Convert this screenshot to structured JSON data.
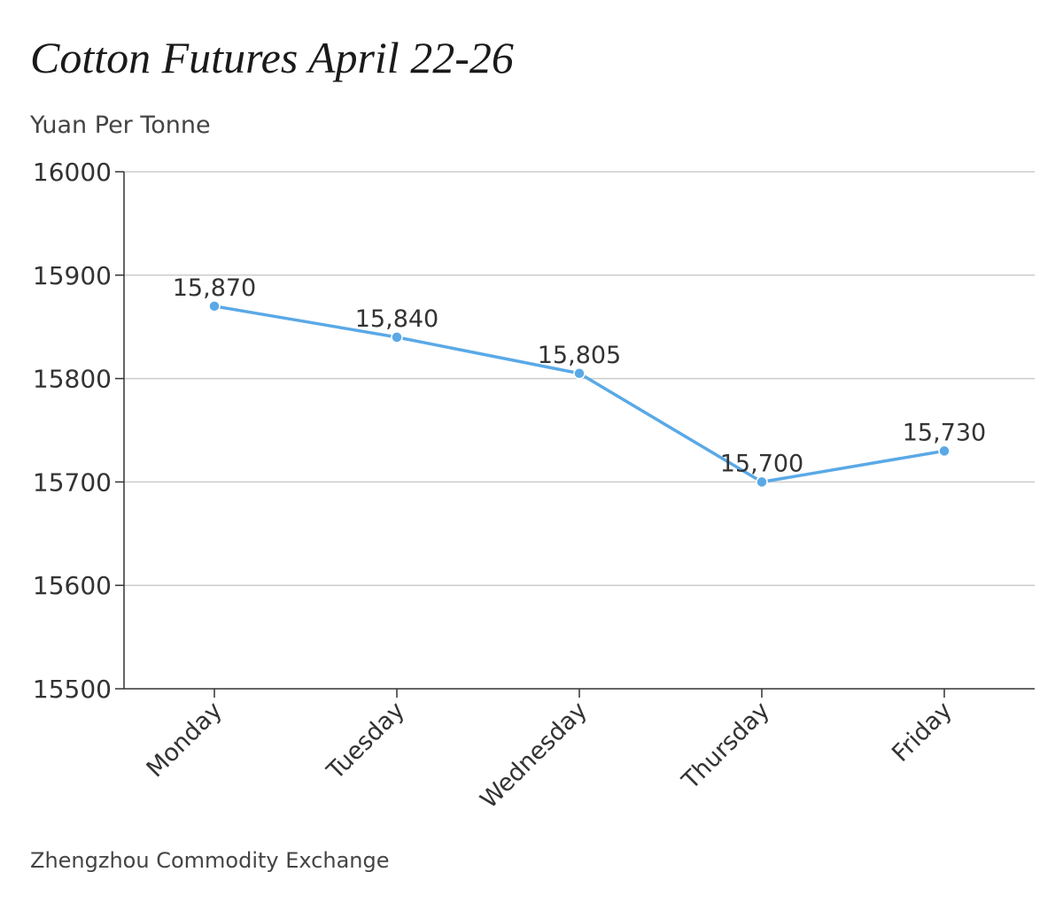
{
  "title": "Cotton Futures April 22-26",
  "unit_label": "Yuan Per Tonne",
  "source": "Zhengzhou Commodity Exchange",
  "colors": {
    "line": "#5aa9e6",
    "grid": "#cccccc",
    "axis": "#333333",
    "text": "#333333"
  },
  "chart_data": {
    "type": "line",
    "categories": [
      "Monday",
      "Tuesday",
      "Wednesday",
      "Thursday",
      "Friday"
    ],
    "series": [
      {
        "values": [
          15870,
          15840,
          15805,
          15700,
          15730
        ],
        "labels": [
          "15,870",
          "15,840",
          "15,805",
          "15,700",
          "15,730"
        ]
      }
    ],
    "ylim": [
      15500,
      16000
    ],
    "yticks": [
      "15500",
      "15600",
      "15700",
      "15800",
      "15900",
      "16000"
    ],
    "title": "Cotton Futures April 22-26",
    "xlabel": "",
    "ylabel": "Yuan Per Tonne",
    "grid": true
  }
}
